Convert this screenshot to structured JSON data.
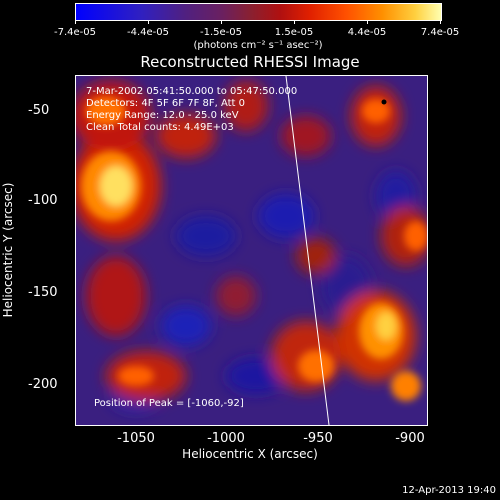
{
  "colorbar": {
    "tick_labels": [
      "-7.4e-05",
      "-4.4e-05",
      "-1.5e-05",
      "1.5e-05",
      "4.4e-05",
      "7.4e-05"
    ],
    "units": "(photons cm⁻² s⁻¹ asec⁻²)"
  },
  "title": "Reconstructed RHESSI Image",
  "info": {
    "time": "7-Mar-2002 05:41:50.000 to 05:47:50.000",
    "detectors": "Detectors: 4F 5F 6F 7F 8F, Att 0",
    "energy": "Energy Range: 12.0 - 25.0 keV",
    "clean": "Clean    Total counts: 4.49E+03"
  },
  "peak": "Position of Peak = [-1060,-92]",
  "axes": {
    "xlabel": "Heliocentric X (arcsec)",
    "ylabel": "Heliocentric Y (arcsec)",
    "xticks": [
      "-1050",
      "-1000",
      "-950",
      "-900"
    ],
    "yticks": [
      "-50",
      "-100",
      "-150",
      "-200"
    ]
  },
  "timestamp": "12-Apr-2013 19:40",
  "colors": {
    "low": "#0000ff",
    "mid": "#6a2060",
    "high": "#ffffb0"
  }
}
